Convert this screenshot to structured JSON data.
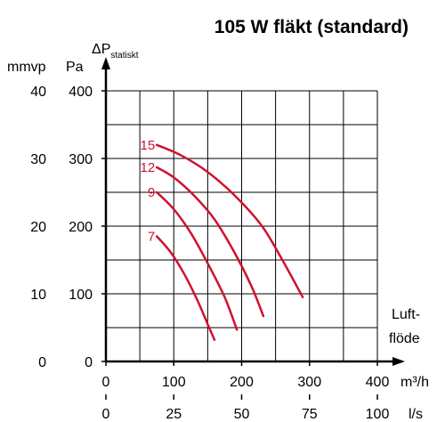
{
  "chart_data": {
    "type": "line",
    "title": "105 W fläkt (standard)",
    "ylabel": {
      "symbol": "ΔP",
      "subscript": "statiskt"
    },
    "y_primary": {
      "unit": "Pa",
      "ticks": [
        0,
        100,
        200,
        300,
        400
      ],
      "range": [
        0,
        400
      ]
    },
    "y_secondary": {
      "unit": "mmvp",
      "ticks": [
        0,
        10,
        20,
        30,
        40
      ]
    },
    "x_primary": {
      "unit": "m³/h",
      "ticks": [
        0,
        100,
        200,
        300,
        400
      ],
      "range": [
        0,
        400
      ]
    },
    "x_secondary": {
      "unit": "l/s",
      "ticks": [
        0,
        25,
        50,
        75,
        100
      ]
    },
    "xlabel": {
      "line1": "Luft-",
      "line2": "flöde"
    },
    "grid": true,
    "curve_color": "#d0122f",
    "series": [
      {
        "name": "15",
        "points": [
          [
            75,
            320
          ],
          [
            110,
            305
          ],
          [
            150,
            280
          ],
          [
            190,
            245
          ],
          [
            230,
            200
          ],
          [
            260,
            150
          ],
          [
            290,
            95
          ]
        ]
      },
      {
        "name": "12",
        "points": [
          [
            75,
            287
          ],
          [
            100,
            272
          ],
          [
            130,
            245
          ],
          [
            160,
            210
          ],
          [
            190,
            160
          ],
          [
            215,
            110
          ],
          [
            232,
            67
          ]
        ]
      },
      {
        "name": "9",
        "points": [
          [
            75,
            250
          ],
          [
            100,
            225
          ],
          [
            125,
            190
          ],
          [
            150,
            145
          ],
          [
            175,
            95
          ],
          [
            193,
            47
          ]
        ]
      },
      {
        "name": "7",
        "points": [
          [
            75,
            185
          ],
          [
            95,
            162
          ],
          [
            115,
            130
          ],
          [
            135,
            90
          ],
          [
            150,
            55
          ],
          [
            160,
            32
          ]
        ]
      }
    ]
  }
}
